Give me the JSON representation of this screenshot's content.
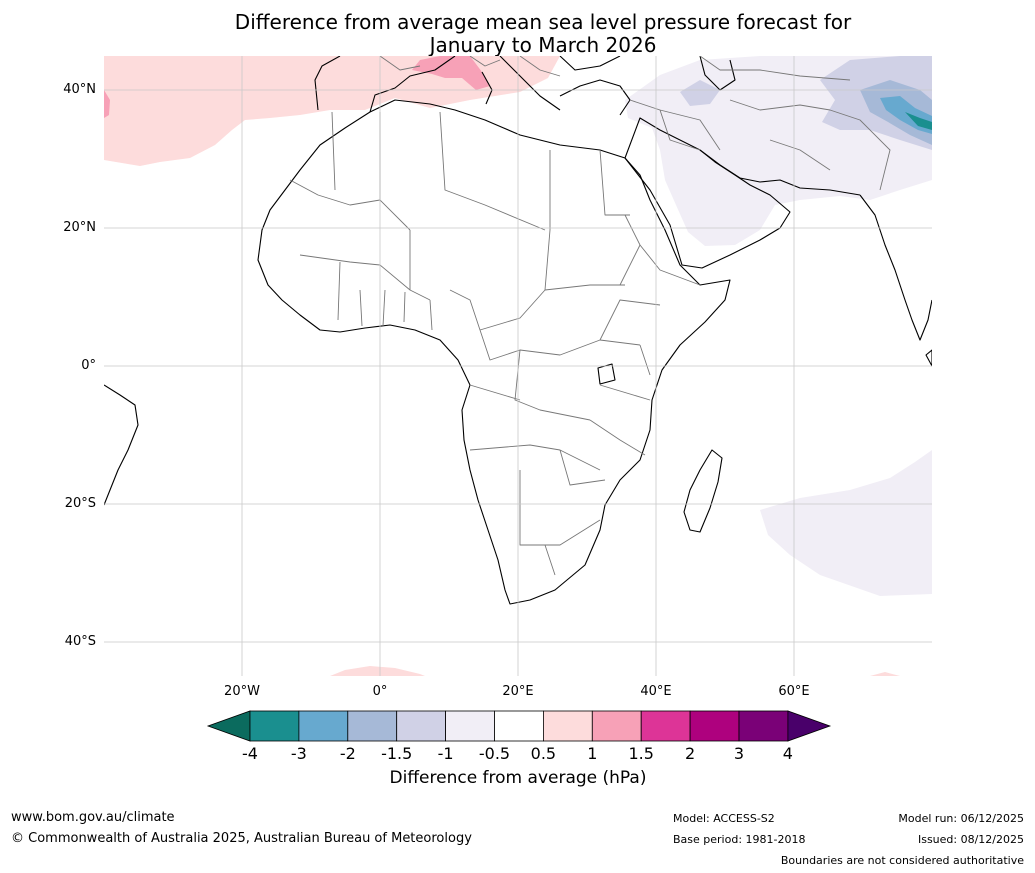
{
  "title": {
    "line1": "Difference from average mean sea level pressure forecast for",
    "line2": "January to March 2026"
  },
  "map": {
    "lat_labels": [
      "40°N",
      "20°N",
      "0°",
      "20°S",
      "40°S"
    ],
    "lon_labels": [
      "20°W",
      "0°",
      "20°E",
      "40°E",
      "60°E"
    ],
    "regions": [
      {
        "name": "north-atlantic-mediterranean",
        "anomaly": "0.5 to 1"
      },
      {
        "name": "italy",
        "anomaly": "1 to 1.5"
      },
      {
        "name": "middle-east-central-asia",
        "anomaly": "-1 to -0.5"
      },
      {
        "name": "tibetan-plateau",
        "anomaly": "-4 to -1.5"
      },
      {
        "name": "southern-indian-ocean",
        "anomaly": "-1 to -0.5"
      },
      {
        "name": "south-atlantic-edge",
        "anomaly": "0.5 to 1"
      }
    ]
  },
  "colorbar": {
    "ticks": [
      "-4",
      "-3",
      "-2",
      "-1.5",
      "-1",
      "-0.5",
      "0.5",
      "1",
      "1.5",
      "2",
      "3",
      "4"
    ],
    "label": "Difference from average (hPa)",
    "under_color": "#0b6b5e",
    "colors": [
      "#1a8f8f",
      "#67a9cf",
      "#a6b9d7",
      "#d0d1e6",
      "#f1eef6",
      "#ffffff",
      "#fddcdc",
      "#f7a1b7",
      "#dd3497",
      "#ae017e",
      "#7a0177"
    ],
    "over_color": "#49006a"
  },
  "footer": {
    "url": "www.bom.gov.au/climate",
    "copyright": "© Commonwealth of Australia 2025, Australian Bureau of Meteorology",
    "model": "Model: ACCESS-S2",
    "base_period": "Base period: 1981-2018",
    "model_run": "Model run: 06/12/2025",
    "issued": "Issued: 08/12/2025",
    "disclaimer": "Boundaries are not considered authoritative"
  }
}
